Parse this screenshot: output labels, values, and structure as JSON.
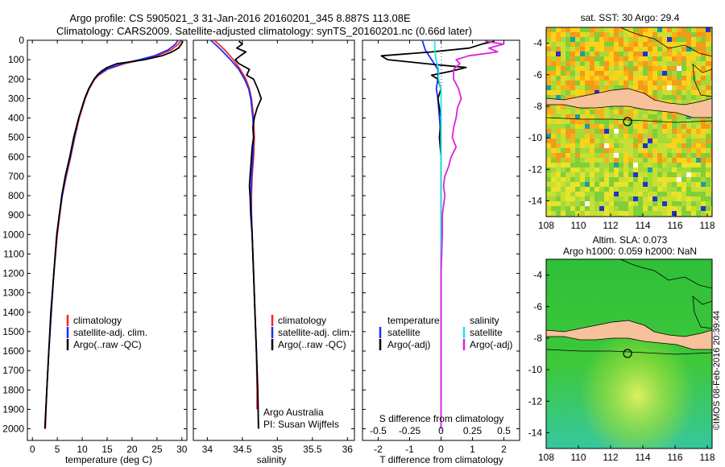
{
  "title_line1": "Argo profile: CS 5905021_3 31-Jan-2016 20160201_345 8.887S 113.08E",
  "title_line2": "Climatology: CARS2009. Satellite-adjusted climatology: synTS_20160201.nc (0.66d later)",
  "depth_ticks": [
    0,
    100,
    200,
    300,
    400,
    500,
    600,
    700,
    800,
    900,
    1000,
    1100,
    1200,
    1300,
    1400,
    1500,
    1600,
    1700,
    1800,
    1900,
    2000
  ],
  "colors": {
    "climatology": "#ff2020",
    "satellite": "#1a2cff",
    "argo": "#000000",
    "sat_salinity": "#22e6e6",
    "argo_salinity": "#e020e0",
    "land": "#f6c19b"
  },
  "chart_data": [
    {
      "type": "line",
      "panel": "temperature",
      "xlabel": "temperature (deg C)",
      "xlim": [
        -1,
        31
      ],
      "ylim": [
        0,
        2060
      ],
      "x_ticks": [
        0,
        5,
        10,
        15,
        20,
        25,
        30
      ],
      "legend": [
        "climatology",
        "satellite-adj. clim.",
        "Argo(..raw -QC)"
      ],
      "series": [
        {
          "name": "climatology",
          "depth": [
            0,
            20,
            50,
            80,
            100,
            120,
            150,
            180,
            200,
            250,
            300,
            400,
            500,
            600,
            700,
            800,
            900,
            1000,
            1200,
            1400,
            1600,
            1800,
            2000
          ],
          "values": [
            29.8,
            29.3,
            27.8,
            25,
            22,
            18.5,
            15,
            13.3,
            12.5,
            11.4,
            10.6,
            9.4,
            8.5,
            7.7,
            6.8,
            6.0,
            5.5,
            5.0,
            4.3,
            3.8,
            3.3,
            2.9,
            2.6
          ]
        },
        {
          "name": "satellite-adj. clim.",
          "depth": [
            0,
            20,
            50,
            80,
            100,
            120,
            150,
            180,
            200,
            250,
            300,
            400,
            500,
            600,
            700,
            800,
            900,
            1000,
            1200,
            1400,
            1600,
            1800,
            2000
          ],
          "values": [
            29.2,
            28.7,
            27.2,
            24.5,
            21.5,
            18,
            14.8,
            13.1,
            12.4,
            11.3,
            10.5,
            9.3,
            8.4,
            7.6,
            6.7,
            6.0,
            5.4,
            4.9,
            4.3,
            3.8,
            3.3,
            2.9,
            2.5
          ]
        },
        {
          "name": "Argo(..raw -QC)",
          "depth": [
            5,
            20,
            40,
            60,
            80,
            100,
            110,
            120,
            140,
            160,
            180,
            200,
            250,
            300,
            400,
            500,
            600,
            700,
            800,
            900,
            1000,
            1200,
            1400,
            1600,
            1800,
            2000
          ],
          "values": [
            30.2,
            29.9,
            29.3,
            28,
            26,
            22.5,
            20,
            17,
            15,
            13.8,
            13,
            12.4,
            11.3,
            10.5,
            9.3,
            8.3,
            7.5,
            6.6,
            5.9,
            5.4,
            4.9,
            4.3,
            3.7,
            3.3,
            2.9,
            2.5
          ]
        }
      ]
    },
    {
      "type": "line",
      "panel": "salinity",
      "xlabel": "salinity",
      "xlim": [
        33.8,
        36.1
      ],
      "ylim": [
        0,
        2060
      ],
      "x_ticks": [
        34,
        34.5,
        35,
        35.5,
        36
      ],
      "legend": [
        "climatology",
        "satellite-adj. clim.",
        "Argo(..raw -QC)"
      ],
      "annotation": [
        "Argo Australia",
        "PI: Susan Wijffels"
      ],
      "series": [
        {
          "name": "climatology",
          "depth": [
            0,
            50,
            100,
            150,
            200,
            250,
            300,
            400,
            500,
            600,
            700,
            800,
            900,
            1000,
            1200,
            1400,
            1600,
            1800,
            1900
          ],
          "values": [
            34.1,
            34.25,
            34.37,
            34.47,
            34.55,
            34.6,
            34.63,
            34.66,
            34.67,
            34.66,
            34.64,
            34.63,
            34.63,
            34.64,
            34.66,
            34.68,
            34.7,
            34.71,
            34.71
          ]
        },
        {
          "name": "satellite-adj. clim.",
          "depth": [
            0,
            50,
            100,
            150,
            200,
            250,
            300,
            400,
            500,
            600,
            700,
            800,
            900,
            1000,
            1200,
            1400,
            1600,
            1800,
            2000
          ],
          "values": [
            34.05,
            34.2,
            34.33,
            34.45,
            34.53,
            34.59,
            34.62,
            34.65,
            34.66,
            34.65,
            34.63,
            34.62,
            34.63,
            34.64,
            34.66,
            34.68,
            34.7,
            34.72,
            34.73
          ]
        },
        {
          "name": "Argo(..raw -QC)",
          "depth": [
            5,
            20,
            40,
            60,
            80,
            100,
            120,
            150,
            180,
            200,
            250,
            300,
            350,
            400,
            450,
            500,
            550,
            600,
            650,
            700,
            750,
            800,
            900,
            1000,
            1200,
            1400,
            1600,
            1800,
            2000
          ],
          "values": [
            34.45,
            34.5,
            34.42,
            34.55,
            34.47,
            34.4,
            34.45,
            34.6,
            34.56,
            34.66,
            34.72,
            34.77,
            34.71,
            34.67,
            34.65,
            34.66,
            34.64,
            34.63,
            34.62,
            34.61,
            34.6,
            34.61,
            34.62,
            34.64,
            34.66,
            34.68,
            34.7,
            34.72,
            34.73
          ]
        }
      ]
    },
    {
      "type": "line",
      "panel": "difference",
      "xlabel": "T difference from climatology",
      "xlabel_top": "S difference from climatology",
      "xlim": [
        -2.5,
        2.5
      ],
      "ylim": [
        0,
        2060
      ],
      "x_ticks_T": [
        -2,
        -1,
        0,
        1,
        2
      ],
      "x_ticks_S": [
        -0.5,
        -0.25,
        0,
        0.25,
        0.5
      ],
      "legend": {
        "temperature_heading": "temperature",
        "salinity_heading": "salinity",
        "items": [
          "satellite",
          "Argo(-adj)",
          "satellite",
          "Argo(-adj)"
        ]
      },
      "series": [
        {
          "name": "T satellite",
          "depth": [
            0,
            50,
            100,
            150,
            200,
            250,
            300,
            400,
            500,
            600,
            800,
            1000,
            1200,
            1400,
            1600,
            1800,
            1850
          ],
          "values": [
            -0.6,
            -0.5,
            -0.3,
            -0.1,
            -0.1,
            -0.15,
            -0.1,
            -0.05,
            0,
            0,
            0,
            0,
            0,
            0,
            0,
            0,
            0
          ]
        },
        {
          "name": "T Argo(-adj)",
          "depth": [
            5,
            20,
            40,
            60,
            80,
            100,
            120,
            140,
            160,
            180,
            200,
            250,
            300,
            400,
            500,
            600,
            800,
            1000,
            1200,
            1400,
            1600,
            1800,
            1850
          ],
          "values": [
            1.7,
            1.3,
            0.9,
            -0.3,
            -1.9,
            -1.7,
            -0.5,
            0.8,
            0.3,
            -0.3,
            -0.1,
            0,
            -0.1,
            0,
            -0.05,
            0,
            0,
            0,
            0,
            0,
            0,
            0,
            0
          ]
        },
        {
          "name": "S satellite",
          "depth": [
            0,
            50,
            100,
            150,
            200,
            250,
            300,
            400,
            500,
            600,
            700,
            800,
            900,
            1000,
            1200,
            1400,
            1600,
            1800,
            2000
          ],
          "values": [
            -0.05,
            -0.05,
            -0.04,
            -0.02,
            -0.02,
            0,
            0,
            0,
            0,
            0,
            0,
            0,
            0,
            0,
            0,
            0,
            0,
            0,
            0
          ]
        },
        {
          "name": "S Argo(-adj)",
          "depth": [
            5,
            20,
            40,
            60,
            80,
            100,
            120,
            150,
            200,
            250,
            300,
            350,
            400,
            450,
            500,
            550,
            600,
            650,
            700,
            750,
            800,
            900,
            1000,
            1200,
            1400,
            1600,
            1800,
            2000
          ],
          "values": [
            0.35,
            0.5,
            0.38,
            0.45,
            0.22,
            0.12,
            0.15,
            0.1,
            0.1,
            0.14,
            0.16,
            0.13,
            0.12,
            0.1,
            0.09,
            0.12,
            0.08,
            0.06,
            0.03,
            0.02,
            0.03,
            0.01,
            0.01,
            0,
            0,
            0,
            0,
            0
          ]
        }
      ]
    },
    {
      "type": "heatmap",
      "panel": "sst_map",
      "title": "sat. SST: 30  Argo: 29.4",
      "xlim": [
        108,
        118.3
      ],
      "ylim": [
        -15,
        -3
      ],
      "x_ticks": [
        108,
        110,
        112,
        114,
        116,
        118
      ],
      "y_ticks": [
        -4,
        -6,
        -8,
        -10,
        -12,
        -14
      ],
      "profile_location": {
        "lon": 113.08,
        "lat": -8.887
      }
    },
    {
      "type": "heatmap",
      "panel": "sla_map",
      "title_line1": "Altim. SLA: 0.073",
      "title_line2": "Argo h1000: 0.059 h2000: NaN",
      "xlim": [
        108,
        118.3
      ],
      "ylim": [
        -15,
        -3
      ],
      "x_ticks": [
        108,
        110,
        112,
        114,
        116,
        118
      ],
      "y_ticks": [
        -4,
        -6,
        -8,
        -10,
        -12,
        -14
      ],
      "profile_location": {
        "lon": 113.08,
        "lat": -8.887
      }
    }
  ],
  "side_label": "©IMOS 08-Feb-2016 20:39:44"
}
